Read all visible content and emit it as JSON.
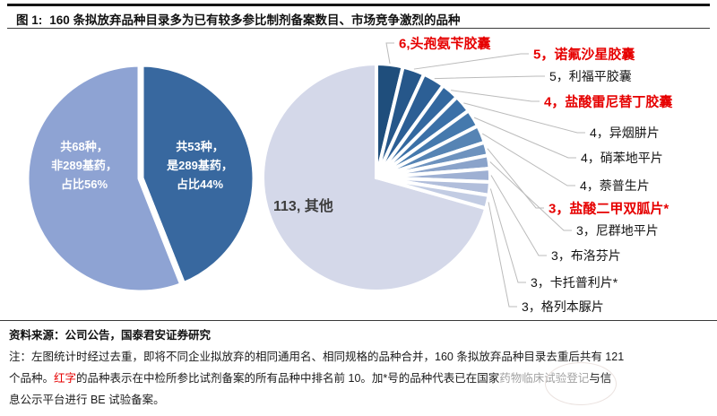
{
  "header": {
    "fig_label": "图 1:",
    "title": "160 条拟放弃品种目录多为已有较多参比制剂备案数目、市场竞争激烈的品种"
  },
  "colors": {
    "accent_red": "#e60000",
    "left_pie_light": "#8EA3D3",
    "left_pie_dark": "#38689F",
    "other_slice": "#D4D8E9",
    "leader_line": "#bbbbbb"
  },
  "chart_data": [
    {
      "type": "pie",
      "name": "dedup-289-split",
      "total": 121,
      "layout": {
        "clockwise_from_top": true,
        "first_drawn": "是289基药",
        "labels": "inside, white bold"
      },
      "slices": [
        {
          "label": "非289基药",
          "value": 68,
          "pct": 56,
          "color": "#8EA3D3",
          "display": "共68种，\n非289基药，\n占比56%"
        },
        {
          "label": "是289基药",
          "value": 53,
          "pct": 44,
          "color": "#38689F",
          "display": "共53种，\n是289基药，\n占比44%"
        }
      ]
    },
    {
      "type": "pie",
      "name": "abandoned-variety-counts",
      "total": 160,
      "layout": {
        "clockwise_from_top": true,
        "small_slices_first": true,
        "callout_labels": "right side with gray leader lines"
      },
      "other": {
        "label": "其他",
        "value": 113,
        "display": "113, 其他",
        "color": "#D4D8E9"
      },
      "palette": [
        "#1F4E7C",
        "#26578A",
        "#2C5F95",
        "#33689F",
        "#3B70A7",
        "#4579AD",
        "#5684B4",
        "#6D92BE",
        "#8AA3CA",
        "#9EB0D3",
        "#B1BEDB",
        "#C2CCE3"
      ],
      "items": [
        {
          "value": 6,
          "name": "头孢氨苄胶囊",
          "display": "6,头孢氨苄胶囊",
          "red": true,
          "starred": false
        },
        {
          "value": 5,
          "name": "诺氟沙星胶囊",
          "display": "5，诺氟沙星胶囊",
          "red": true,
          "starred": false
        },
        {
          "value": 5,
          "name": "利福平胶囊",
          "display": "5，利福平胶囊",
          "red": false,
          "starred": false
        },
        {
          "value": 4,
          "name": "盐酸雷尼替丁胶囊",
          "display": "4，盐酸雷尼替丁胶囊",
          "red": true,
          "starred": false
        },
        {
          "value": 4,
          "name": "异烟肼片",
          "display": "4，异烟肼片",
          "red": false,
          "starred": false
        },
        {
          "value": 4,
          "name": "硝苯地平片",
          "display": "4，硝苯地平片",
          "red": false,
          "starred": false
        },
        {
          "value": 4,
          "name": "萘普生片",
          "display": "4，萘普生片",
          "red": false,
          "starred": false
        },
        {
          "value": 3,
          "name": "盐酸二甲双胍片",
          "display": "3，盐酸二甲双胍片*",
          "red": true,
          "starred": true
        },
        {
          "value": 3,
          "name": "尼群地平片",
          "display": "3，尼群地平片",
          "red": false,
          "starred": false
        },
        {
          "value": 3,
          "name": "布洛芬片",
          "display": "3，布洛芬片",
          "red": false,
          "starred": false
        },
        {
          "value": 3,
          "name": "卡托普利片",
          "display": "3，卡托普利片*",
          "red": false,
          "starred": true
        },
        {
          "value": 3,
          "name": "格列本脲片",
          "display": "3，格列本脲片",
          "red": false,
          "starred": false
        }
      ]
    }
  ],
  "footer": {
    "source": "资料来源：公司公告，国泰君安证券研究",
    "note_line1": "注：左图统计时经过去重，即将不同企业拟放弃的相同通用名、相同规格的品种合并，160 条拟放弃品种目录去重后共有 121",
    "note_line2_pre": "个品种。",
    "note_line2_red": "红字",
    "note_line2_mid": "的品种表示在中检所参比试剂备案的所有品种中排名前 10。加*号的品种代表已在国家",
    "note_line2_faded": "药物临床试验登记",
    "note_line2_tail": "与信",
    "note_line3": "息公示平台进行 BE 试验备案。"
  }
}
